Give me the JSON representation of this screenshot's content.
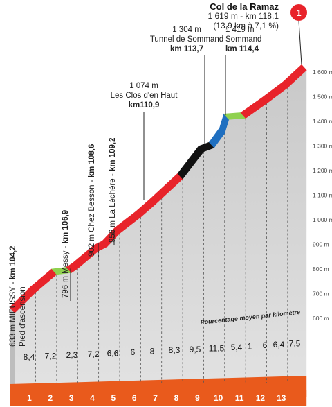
{
  "chart_data": {
    "type": "area",
    "summit": {
      "badge": "1",
      "name": "Col de la Ramaz",
      "line1": "1 619 m - km 118,1",
      "line2": "(13,9 km à 7,1 %)"
    },
    "y_ticks": [
      "600 m",
      "700 m",
      "800 m",
      "900 m",
      "1 000 m",
      "1 100 m",
      "1 200 m",
      "1 300 m",
      "1 400 m",
      "1 500 m",
      "1 600 m"
    ],
    "ylim": [
      600,
      1600
    ],
    "caption": "Pourcentage moyen par kilomètre",
    "km_labels": [
      "1",
      "2",
      "3",
      "4",
      "5",
      "6",
      "7",
      "8",
      "9",
      "10",
      "11",
      "12",
      "13"
    ],
    "gradients": [
      "8,4",
      "7,2",
      "2,3",
      "7,2",
      "6,6",
      "6",
      "8",
      "8,3",
      "9,5",
      "11,5",
      "5,4",
      "1",
      "6",
      "6,4",
      "7,5"
    ],
    "profile": {
      "km": [
        104.2,
        105.2,
        106.2,
        106.9,
        107.2,
        108.2,
        108.6,
        109.2,
        110.2,
        110.9,
        111.2,
        112.2,
        113.2,
        113.7,
        114.2,
        114.4,
        115.2,
        116.2,
        117.2,
        118.1
      ],
      "alt": [
        633,
        717,
        789,
        796,
        813,
        885,
        902,
        956,
        1022,
        1074,
        1098,
        1177,
        1288,
        1304,
        1363,
        1419,
        1424,
        1484,
        1548,
        1619
      ]
    },
    "waypoints": [
      {
        "alt": "633 m",
        "name": "MIEUSSY - ",
        "km": "km 104,2",
        "note": "Pied d'ascension"
      },
      {
        "alt": "796 m",
        "name": "Messy - ",
        "km": "km 106,9"
      },
      {
        "alt": "902 m",
        "name": "Chez Besson - ",
        "km": "km 108,6"
      },
      {
        "alt": "956 m",
        "name": "La Léchère - ",
        "km": "km 109,2"
      },
      {
        "alt": "1 074 m",
        "name": "Les Clos d'en Haut",
        "km": "km110,9"
      },
      {
        "alt": "1 304 m",
        "name": "Tunnel de Sommand",
        "km": "km 113,7"
      },
      {
        "alt": "1 419 m",
        "name": "Sommand",
        "km": "km 114,4"
      }
    ],
    "segment_colors": {
      "climb": "#e8232a",
      "flat": "#8fd14f",
      "tunnel": "#111111",
      "sommand": "#1f6fc0",
      "ground": "#e95a1c"
    }
  }
}
